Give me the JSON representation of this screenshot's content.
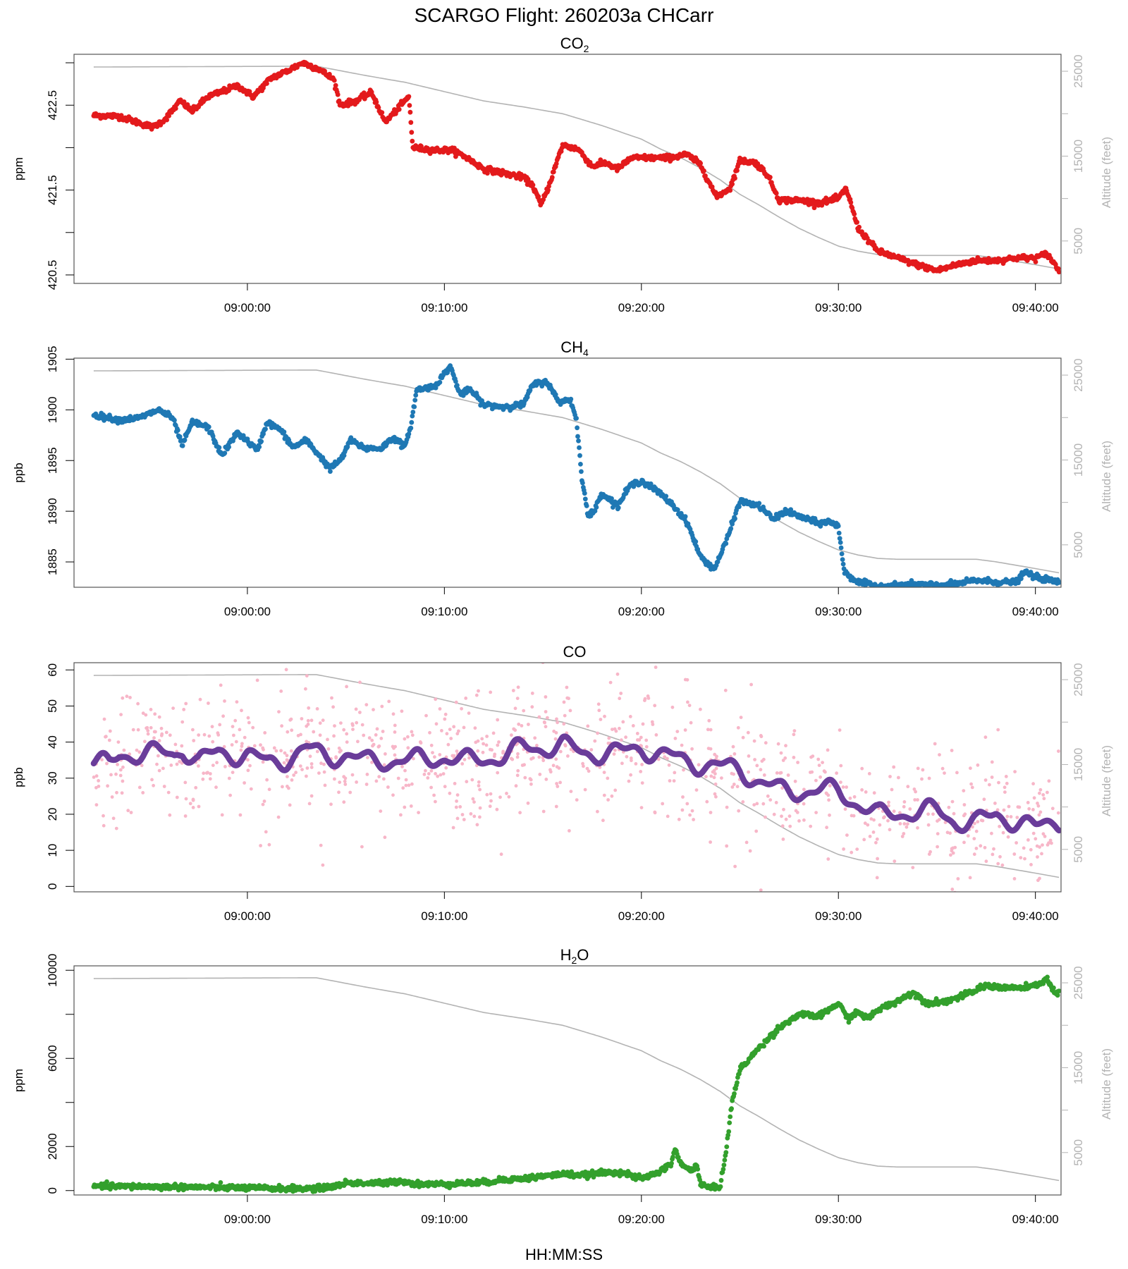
{
  "chart_data": {
    "title": "SCARGO Flight: 260203a  CHCarr",
    "xlabel": "HH:MM:SS",
    "type": "scatter",
    "time_range_min": [
      -8.8,
      41.3
    ],
    "xticks": [
      {
        "t": 0,
        "label": "09:00:00"
      },
      {
        "t": 10,
        "label": "09:10:00"
      },
      {
        "t": 20,
        "label": "09:20:00"
      },
      {
        "t": 30,
        "label": "09:30:00"
      },
      {
        "t": 40,
        "label": "09:40:00"
      }
    ],
    "altitude_axis": {
      "label": "Altitude (feet)",
      "ticks": [
        5000,
        15000,
        25000
      ],
      "color": "#b3b3b3",
      "keyframes": [
        [
          -7.8,
          25500
        ],
        [
          3.5,
          25600
        ],
        [
          6,
          24500
        ],
        [
          8,
          23700
        ],
        [
          10,
          22600
        ],
        [
          12,
          21500
        ],
        [
          14,
          20800
        ],
        [
          16,
          20000
        ],
        [
          18,
          18600
        ],
        [
          20,
          17000
        ],
        [
          21,
          15800
        ],
        [
          22,
          14800
        ],
        [
          23,
          13600
        ],
        [
          24,
          12200
        ],
        [
          25,
          10500
        ],
        [
          26,
          9200
        ],
        [
          27,
          7800
        ],
        [
          28,
          6500
        ],
        [
          29,
          5400
        ],
        [
          30,
          4400
        ],
        [
          31,
          3800
        ],
        [
          32,
          3400
        ],
        [
          33,
          3300
        ],
        [
          34,
          3300
        ],
        [
          35,
          3300
        ],
        [
          36,
          3300
        ],
        [
          37,
          3300
        ],
        [
          38,
          3000
        ],
        [
          39,
          2600
        ],
        [
          40,
          2200
        ],
        [
          41.2,
          1700
        ]
      ]
    },
    "panels": [
      {
        "id": "co2",
        "title_main": "CO",
        "title_sub": "2",
        "ylabel": "ppm",
        "ylim": [
          420.4,
          423.1
        ],
        "yticks": [
          420.5,
          421.5,
          422.5
        ],
        "yminor": [
          421.0,
          422.0,
          423.0
        ],
        "ytick_labels": [
          "420.5",
          "421.5",
          "422.5"
        ],
        "color": "#e31a1c",
        "series_type": "points",
        "keyframes": [
          [
            -7.8,
            422.38
          ],
          [
            -6.5,
            422.37
          ],
          [
            -5.6,
            422.3
          ],
          [
            -4.8,
            422.24
          ],
          [
            -4.2,
            422.33
          ],
          [
            -3.4,
            422.55
          ],
          [
            -2.8,
            422.43
          ],
          [
            -2.0,
            422.6
          ],
          [
            -1.4,
            422.65
          ],
          [
            -0.5,
            422.73
          ],
          [
            0.3,
            422.6
          ],
          [
            1.2,
            422.82
          ],
          [
            2.0,
            422.9
          ],
          [
            2.8,
            423.0
          ],
          [
            3.6,
            422.93
          ],
          [
            4.4,
            422.8
          ],
          [
            4.7,
            422.5
          ],
          [
            5.5,
            422.55
          ],
          [
            6.3,
            422.65
          ],
          [
            7.0,
            422.3
          ],
          [
            7.6,
            422.45
          ],
          [
            8.2,
            422.6
          ],
          [
            8.4,
            422.0
          ],
          [
            9.5,
            421.97
          ],
          [
            10.4,
            421.97
          ],
          [
            11.0,
            421.9
          ],
          [
            12.0,
            421.75
          ],
          [
            13.0,
            421.7
          ],
          [
            14.0,
            421.65
          ],
          [
            14.5,
            421.55
          ],
          [
            14.9,
            421.32
          ],
          [
            15.3,
            421.55
          ],
          [
            16.0,
            422.03
          ],
          [
            16.8,
            421.98
          ],
          [
            17.5,
            421.78
          ],
          [
            18.2,
            421.82
          ],
          [
            18.8,
            421.75
          ],
          [
            19.5,
            421.88
          ],
          [
            20.5,
            421.88
          ],
          [
            21.4,
            421.88
          ],
          [
            22.3,
            421.92
          ],
          [
            23.0,
            421.8
          ],
          [
            23.8,
            421.42
          ],
          [
            24.5,
            421.52
          ],
          [
            25.0,
            421.85
          ],
          [
            25.8,
            421.82
          ],
          [
            26.4,
            421.68
          ],
          [
            27.0,
            421.38
          ],
          [
            28.0,
            421.38
          ],
          [
            29.0,
            421.35
          ],
          [
            30.0,
            421.4
          ],
          [
            30.4,
            421.52
          ],
          [
            31.0,
            421.05
          ],
          [
            32.0,
            420.78
          ],
          [
            33.0,
            420.7
          ],
          [
            34.0,
            420.62
          ],
          [
            35.0,
            420.55
          ],
          [
            36.0,
            420.62
          ],
          [
            37.0,
            420.67
          ],
          [
            38.0,
            420.67
          ],
          [
            39.0,
            420.7
          ],
          [
            40.0,
            420.7
          ],
          [
            40.6,
            420.75
          ],
          [
            41.2,
            420.55
          ]
        ]
      },
      {
        "id": "ch4",
        "title_main": "CH",
        "title_sub": "4",
        "ylabel": "ppb",
        "ylim": [
          1882.5,
          1905.1
        ],
        "yticks": [
          1885,
          1890,
          1895,
          1900,
          1905
        ],
        "ytick_labels": [
          "1885",
          "1890",
          "1895",
          "1900",
          "1905"
        ],
        "color": "#1f78b4",
        "series_type": "points",
        "keyframes": [
          [
            -7.8,
            1899.5
          ],
          [
            -6.5,
            1899.0
          ],
          [
            -5.5,
            1899.2
          ],
          [
            -4.5,
            1900.0
          ],
          [
            -3.8,
            1899.2
          ],
          [
            -3.3,
            1896.5
          ],
          [
            -2.8,
            1898.8
          ],
          [
            -2.0,
            1898.3
          ],
          [
            -1.3,
            1895.5
          ],
          [
            -0.5,
            1897.8
          ],
          [
            0.5,
            1896.0
          ],
          [
            1.0,
            1898.8
          ],
          [
            1.7,
            1898.0
          ],
          [
            2.3,
            1896.3
          ],
          [
            3.0,
            1897.0
          ],
          [
            3.6,
            1895.6
          ],
          [
            4.2,
            1894.2
          ],
          [
            4.8,
            1895.2
          ],
          [
            5.2,
            1897.0
          ],
          [
            6.0,
            1896.2
          ],
          [
            6.8,
            1896.2
          ],
          [
            7.4,
            1897.3
          ],
          [
            8.0,
            1896.3
          ],
          [
            8.3,
            1898.5
          ],
          [
            8.6,
            1902.0
          ],
          [
            9.5,
            1902.3
          ],
          [
            10.3,
            1904.3
          ],
          [
            10.8,
            1901.5
          ],
          [
            11.3,
            1902.0
          ],
          [
            12.0,
            1900.5
          ],
          [
            13.0,
            1900.3
          ],
          [
            14.0,
            1900.5
          ],
          [
            14.5,
            1902.5
          ],
          [
            15.2,
            1902.8
          ],
          [
            15.8,
            1900.8
          ],
          [
            16.4,
            1901.0
          ],
          [
            16.7,
            1899.0
          ],
          [
            17.0,
            1893.0
          ],
          [
            17.3,
            1889.5
          ],
          [
            17.6,
            1890.0
          ],
          [
            18.0,
            1891.8
          ],
          [
            18.8,
            1890.5
          ],
          [
            19.4,
            1892.5
          ],
          [
            20.0,
            1893.0
          ],
          [
            20.8,
            1892.0
          ],
          [
            21.5,
            1890.8
          ],
          [
            22.3,
            1889.0
          ],
          [
            23.0,
            1885.5
          ],
          [
            23.7,
            1884.3
          ],
          [
            24.3,
            1887.0
          ],
          [
            25.0,
            1891.0
          ],
          [
            26.0,
            1890.5
          ],
          [
            26.7,
            1889.2
          ],
          [
            27.3,
            1890.0
          ],
          [
            28.0,
            1889.5
          ],
          [
            29.0,
            1888.8
          ],
          [
            29.5,
            1889.0
          ],
          [
            30.0,
            1888.5
          ],
          [
            30.3,
            1884.0
          ],
          [
            31.0,
            1883.0
          ],
          [
            32.0,
            1882.6
          ],
          [
            34.0,
            1882.8
          ],
          [
            35.0,
            1882.7
          ],
          [
            36.0,
            1882.8
          ],
          [
            37.0,
            1883.2
          ],
          [
            38.0,
            1883.0
          ],
          [
            39.0,
            1883.0
          ],
          [
            39.5,
            1884.0
          ],
          [
            40.0,
            1883.5
          ],
          [
            41.2,
            1883.0
          ]
        ]
      },
      {
        "id": "co",
        "title_main": "CO",
        "title_sub": "",
        "ylabel": "ppb",
        "ylim": [
          -1.5,
          62
        ],
        "yticks": [
          0,
          10,
          20,
          30,
          40,
          50,
          60
        ],
        "ytick_labels": [
          "0",
          "10",
          "20",
          "30",
          "40",
          "50",
          "60"
        ],
        "color": "#6a3d9a",
        "raw_color": "#f7b6c8",
        "series_type": "smoothed_with_raw",
        "keyframes": [
          [
            -7.8,
            34.5
          ],
          [
            -7.0,
            33.5
          ],
          [
            -6.5,
            36.5
          ],
          [
            -5.0,
            37.0
          ],
          [
            -3.7,
            36.5
          ],
          [
            -3.3,
            38.5
          ],
          [
            -2.5,
            34.5
          ],
          [
            -1.5,
            37.0
          ],
          [
            0.0,
            36.5
          ],
          [
            1.0,
            34.0
          ],
          [
            2.0,
            35.5
          ],
          [
            3.0,
            38.0
          ],
          [
            4.0,
            36.0
          ],
          [
            5.0,
            36.5
          ],
          [
            6.0,
            34.5
          ],
          [
            7.0,
            35.0
          ],
          [
            8.0,
            35.0
          ],
          [
            9.0,
            35.0
          ],
          [
            10.0,
            36.0
          ],
          [
            11.0,
            34.5
          ],
          [
            12.0,
            35.5
          ],
          [
            13.0,
            36.0
          ],
          [
            14.0,
            38.5
          ],
          [
            15.0,
            38.5
          ],
          [
            16.0,
            39.0
          ],
          [
            17.0,
            37.0
          ],
          [
            18.0,
            37.0
          ],
          [
            19.0,
            37.0
          ],
          [
            20.0,
            38.5
          ],
          [
            21.0,
            36.5
          ],
          [
            22.0,
            35.0
          ],
          [
            23.0,
            34.0
          ],
          [
            24.0,
            33.0
          ],
          [
            25.0,
            32.5
          ],
          [
            26.0,
            29.0
          ],
          [
            27.0,
            26.5
          ],
          [
            28.0,
            26.5
          ],
          [
            29.0,
            26.5
          ],
          [
            30.0,
            26.5
          ],
          [
            31.0,
            23.0
          ],
          [
            32.0,
            19.5
          ],
          [
            33.0,
            20.5
          ],
          [
            34.0,
            20.5
          ],
          [
            35.0,
            21.0
          ],
          [
            36.0,
            18.0
          ],
          [
            37.0,
            17.5
          ],
          [
            38.0,
            20.0
          ],
          [
            39.0,
            18.0
          ],
          [
            40.0,
            16.0
          ],
          [
            41.0,
            18.5
          ]
        ],
        "raw_spread": 9,
        "raw_count": 1050
      },
      {
        "id": "h2o",
        "title_main": "H",
        "title_sub": "2",
        "title_tail": "O",
        "ylabel": "ppm",
        "ylim": [
          -200,
          10200
        ],
        "yticks": [
          0,
          2000,
          6000,
          10000
        ],
        "yminor": [
          4000,
          8000
        ],
        "ytick_labels": [
          "0",
          "2000",
          "6000",
          "10000"
        ],
        "color": "#33a02c",
        "series_type": "points",
        "keyframes": [
          [
            -7.8,
            200
          ],
          [
            -5.0,
            180
          ],
          [
            -2.0,
            150
          ],
          [
            0.0,
            120
          ],
          [
            2.0,
            90
          ],
          [
            3.5,
            90
          ],
          [
            4.5,
            200
          ],
          [
            5.0,
            350
          ],
          [
            6.0,
            330
          ],
          [
            7.0,
            330
          ],
          [
            7.8,
            450
          ],
          [
            8.5,
            300
          ],
          [
            9.5,
            280
          ],
          [
            10.5,
            320
          ],
          [
            12.0,
            360
          ],
          [
            13.0,
            500
          ],
          [
            14.0,
            540
          ],
          [
            15.0,
            650
          ],
          [
            16.0,
            750
          ],
          [
            17.0,
            700
          ],
          [
            18.0,
            800
          ],
          [
            19.0,
            850
          ],
          [
            19.5,
            650
          ],
          [
            20.0,
            550
          ],
          [
            20.5,
            700
          ],
          [
            21.0,
            900
          ],
          [
            21.5,
            1200
          ],
          [
            21.7,
            1900
          ],
          [
            22.0,
            1200
          ],
          [
            22.5,
            900
          ],
          [
            22.8,
            1200
          ],
          [
            23.0,
            300
          ],
          [
            23.5,
            100
          ],
          [
            24.0,
            200
          ],
          [
            24.3,
            1800
          ],
          [
            24.6,
            4000
          ],
          [
            25.0,
            5500
          ],
          [
            26.0,
            6500
          ],
          [
            27.0,
            7400
          ],
          [
            28.0,
            8000
          ],
          [
            29.0,
            7900
          ],
          [
            30.0,
            8500
          ],
          [
            30.5,
            7800
          ],
          [
            31.0,
            8100
          ],
          [
            31.5,
            7800
          ],
          [
            32.0,
            8200
          ],
          [
            33.0,
            8600
          ],
          [
            33.8,
            9000
          ],
          [
            34.5,
            8500
          ],
          [
            35.5,
            8600
          ],
          [
            36.5,
            8900
          ],
          [
            37.5,
            9300
          ],
          [
            38.5,
            9200
          ],
          [
            39.5,
            9200
          ],
          [
            40.0,
            9300
          ],
          [
            40.6,
            9600
          ],
          [
            41.0,
            8900
          ],
          [
            41.3,
            9100
          ]
        ]
      }
    ]
  }
}
